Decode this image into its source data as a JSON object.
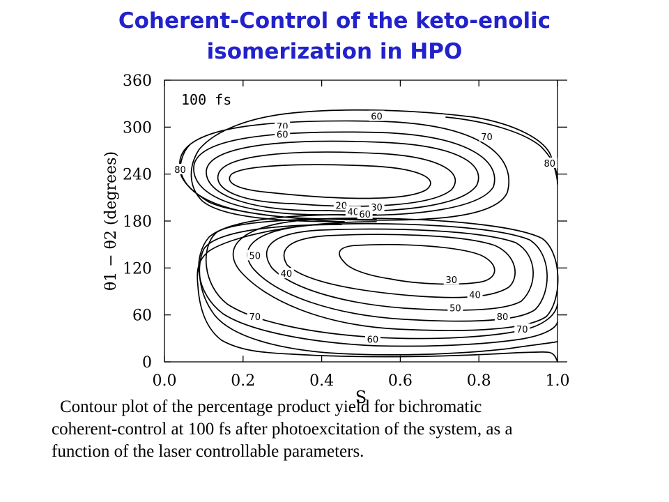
{
  "title": {
    "line1": "Coherent-Control of the keto-enolic",
    "line2": "isomerization in HPO"
  },
  "caption": {
    "line1": "Contour plot of the percentage product yield for bichromatic",
    "line2": "coherent-control at 100 fs after photoexcitation of the system,  as a",
    "line3": "function of the laser controllable parameters."
  },
  "colors": {
    "title": "#2222cc",
    "lines": "#000000"
  },
  "chart_data": {
    "type": "contour",
    "annotation": "100 fs",
    "xlabel": "S",
    "ylabel": "θ1 − θ2 (degrees)",
    "xlim": [
      0.0,
      1.0
    ],
    "ylim": [
      0,
      360
    ],
    "xticks": [
      "0.0",
      "0.2",
      "0.4",
      "0.6",
      "0.8",
      "1.0"
    ],
    "yticks": [
      "0",
      "60",
      "120",
      "180",
      "240",
      "300",
      "360"
    ],
    "contour_labels": [
      {
        "text": "60",
        "x": 0.54,
        "y": 314
      },
      {
        "text": "70",
        "x": 0.3,
        "y": 301
      },
      {
        "text": "60",
        "x": 0.3,
        "y": 291
      },
      {
        "text": "70",
        "x": 0.82,
        "y": 288
      },
      {
        "text": "80",
        "x": 0.98,
        "y": 254
      },
      {
        "text": "80",
        "x": 0.04,
        "y": 246
      },
      {
        "text": "20",
        "x": 0.45,
        "y": 200
      },
      {
        "text": "30",
        "x": 0.54,
        "y": 198
      },
      {
        "text": "40",
        "x": 0.48,
        "y": 192
      },
      {
        "text": "60",
        "x": 0.51,
        "y": 189
      },
      {
        "text": "50",
        "x": 0.23,
        "y": 136
      },
      {
        "text": "40",
        "x": 0.31,
        "y": 113
      },
      {
        "text": "30",
        "x": 0.73,
        "y": 105
      },
      {
        "text": "40",
        "x": 0.79,
        "y": 86
      },
      {
        "text": "50",
        "x": 0.74,
        "y": 69
      },
      {
        "text": "70",
        "x": 0.23,
        "y": 58
      },
      {
        "text": "80",
        "x": 0.86,
        "y": 58
      },
      {
        "text": "70",
        "x": 0.91,
        "y": 42
      },
      {
        "text": "60",
        "x": 0.53,
        "y": 29
      }
    ]
  }
}
